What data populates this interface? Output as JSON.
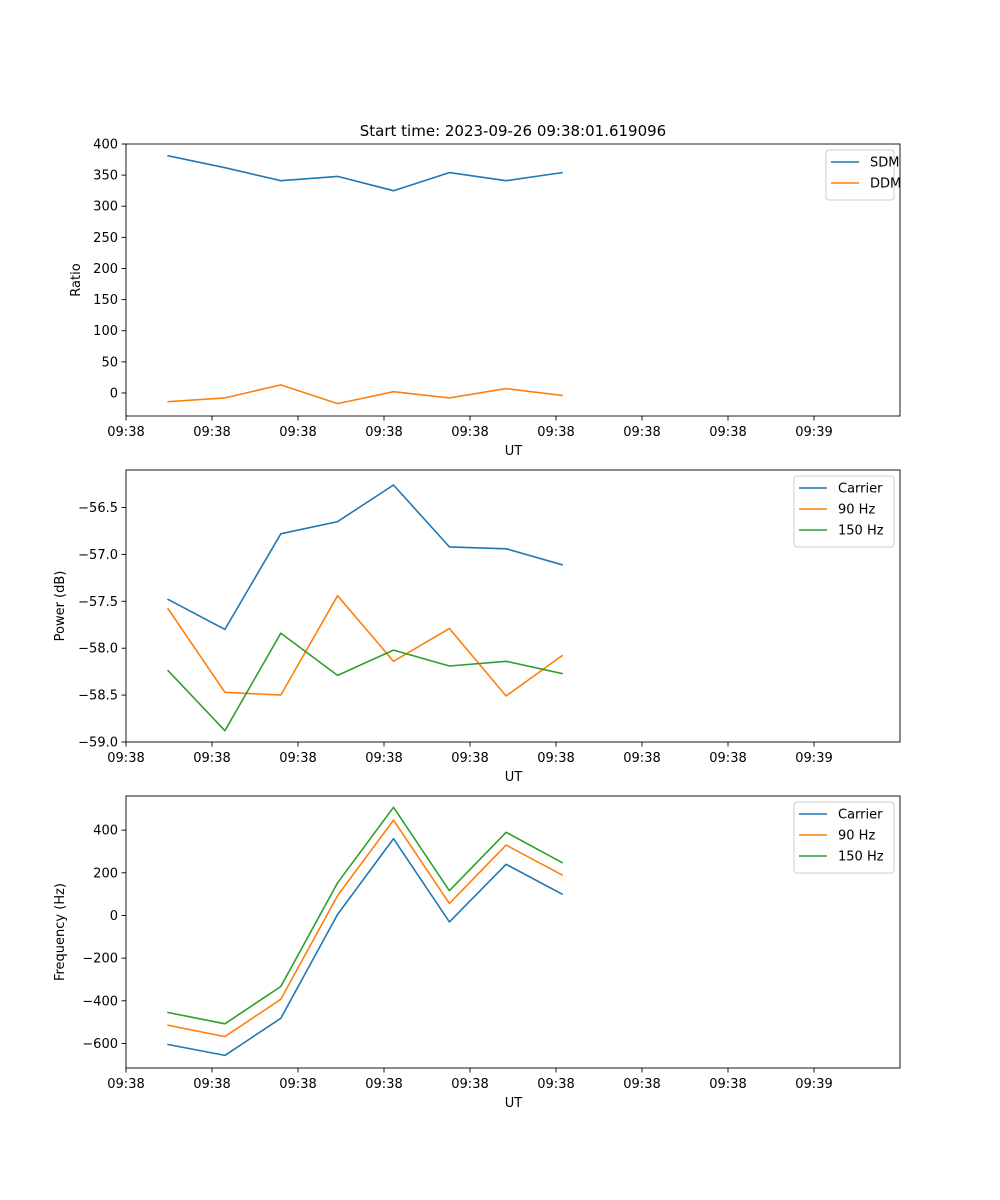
{
  "figure": {
    "title": "Start time: 2023-09-26 09:38:01.619096"
  },
  "chart_data": [
    {
      "type": "line",
      "title": "Start time: 2023-09-26 09:38:01.619096",
      "xlabel": "UT",
      "ylabel": "Ratio",
      "xlim": [
        0,
        9
      ],
      "ylim": [
        -37,
        400
      ],
      "xticks": [
        0,
        1,
        2,
        3,
        4,
        5,
        6,
        7,
        8
      ],
      "xtick_labels": [
        "09:38",
        "09:38",
        "09:38",
        "09:38",
        "09:38",
        "09:38",
        "09:38",
        "09:38",
        "09:39"
      ],
      "yticks": [
        0,
        50,
        100,
        150,
        200,
        250,
        300,
        350,
        400
      ],
      "ytick_labels": [
        "0",
        "50",
        "100",
        "150",
        "200",
        "250",
        "300",
        "350",
        "400"
      ],
      "legend_position": "top-right",
      "x": [
        0.49,
        1.15,
        1.8,
        2.46,
        3.11,
        3.76,
        4.42,
        5.07
      ],
      "series": [
        {
          "name": "SDM",
          "color": "#1f77b4",
          "values": [
            381,
            362,
            341,
            348,
            325,
            354,
            341,
            354
          ]
        },
        {
          "name": "DDM",
          "color": "#ff7f0e",
          "values": [
            -14,
            -8,
            13,
            -17,
            2,
            -8,
            7,
            -4
          ]
        }
      ]
    },
    {
      "type": "line",
      "title": "",
      "xlabel": "UT",
      "ylabel": "Power (dB)",
      "xlim": [
        0,
        9
      ],
      "ylim": [
        -59.0,
        -56.1
      ],
      "xticks": [
        0,
        1,
        2,
        3,
        4,
        5,
        6,
        7,
        8
      ],
      "xtick_labels": [
        "09:38",
        "09:38",
        "09:38",
        "09:38",
        "09:38",
        "09:38",
        "09:38",
        "09:38",
        "09:39"
      ],
      "yticks": [
        -59.0,
        -58.5,
        -58.0,
        -57.5,
        -57.0,
        -56.5
      ],
      "ytick_labels": [
        "−59.0",
        "−58.5",
        "−58.0",
        "−57.5",
        "−57.0",
        "−56.5"
      ],
      "legend_position": "top-right",
      "x": [
        0.49,
        1.15,
        1.8,
        2.46,
        3.11,
        3.76,
        4.42,
        5.07
      ],
      "series": [
        {
          "name": "Carrier",
          "color": "#1f77b4",
          "values": [
            -57.48,
            -57.8,
            -56.78,
            -56.65,
            -56.26,
            -56.92,
            -56.94,
            -57.11
          ]
        },
        {
          "name": "90 Hz",
          "color": "#ff7f0e",
          "values": [
            -57.58,
            -58.47,
            -58.5,
            -57.44,
            -58.14,
            -57.79,
            -58.51,
            -58.08
          ]
        },
        {
          "name": "150 Hz",
          "color": "#2ca02c",
          "values": [
            -58.24,
            -58.88,
            -57.84,
            -58.29,
            -58.02,
            -58.19,
            -58.14,
            -58.27
          ]
        }
      ]
    },
    {
      "type": "line",
      "title": "",
      "xlabel": "UT",
      "ylabel": "Frequency (Hz)",
      "xlim": [
        0,
        9
      ],
      "ylim": [
        -715,
        560
      ],
      "xticks": [
        0,
        1,
        2,
        3,
        4,
        5,
        6,
        7,
        8
      ],
      "xtick_labels": [
        "09:38",
        "09:38",
        "09:38",
        "09:38",
        "09:38",
        "09:38",
        "09:38",
        "09:38",
        "09:39"
      ],
      "yticks": [
        -600,
        -400,
        -200,
        0,
        200,
        400
      ],
      "ytick_labels": [
        "−600",
        "−400",
        "−200",
        "0",
        "200",
        "400"
      ],
      "legend_position": "top-right",
      "x": [
        0.49,
        1.15,
        1.8,
        2.46,
        3.11,
        3.76,
        4.42,
        5.07
      ],
      "series": [
        {
          "name": "Carrier",
          "color": "#1f77b4",
          "values": [
            -605,
            -656,
            -482,
            5,
            360,
            -30,
            240,
            100
          ]
        },
        {
          "name": "90 Hz",
          "color": "#ff7f0e",
          "values": [
            -515,
            -568,
            -393,
            93,
            447,
            56,
            330,
            190
          ]
        },
        {
          "name": "150 Hz",
          "color": "#2ca02c",
          "values": [
            -455,
            -508,
            -333,
            153,
            507,
            116,
            390,
            248
          ]
        }
      ]
    }
  ]
}
